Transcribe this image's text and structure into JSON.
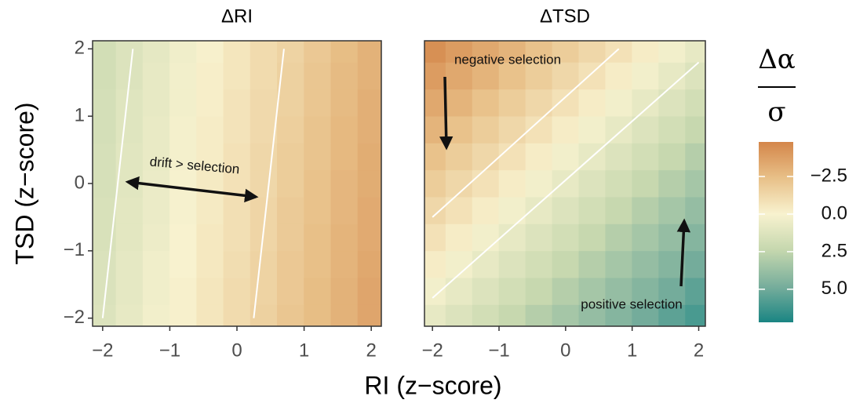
{
  "chart_data": {
    "type": "heatmap",
    "xlabel": "RI (z−score)",
    "ylabel": "TSD (z−score)",
    "colorbar": {
      "title_numerator": "Δα",
      "title_denominator": "σ",
      "clim": [
        -4.8,
        7.2
      ],
      "colors": [
        "#d4864a",
        "#e8c088",
        "#f8f2cf",
        "#c5d7ae",
        "#78ae9c",
        "#1a8583"
      ],
      "ticks": [
        {
          "value": -2.5,
          "label": "−2.5"
        },
        {
          "value": 0,
          "label": "0.0"
        },
        2.5,
        {
          "value": 5,
          "label": "5.0"
        }
      ]
    },
    "panels": [
      {
        "title": "ΔRI",
        "annotations": [
          "drift > selection"
        ],
        "xlim": [
          -2.15,
          2.15
        ],
        "ylim": [
          -2.12,
          2.12
        ],
        "xticks": [
          {
            "value": -2,
            "label": "−2"
          },
          {
            "value": -1,
            "label": "−1"
          },
          0,
          1,
          2
        ],
        "yticks": [
          {
            "value": -2,
            "label": "−2"
          },
          {
            "value": -1,
            "label": "−1"
          },
          0,
          1,
          2
        ],
        "x": [
          -2,
          -1.6,
          -1.2,
          -0.8,
          -0.4,
          0,
          0.4,
          0.8,
          1.2,
          1.6,
          2
        ],
        "y": [
          -2,
          -1.6,
          -1.2,
          -0.8,
          -0.4,
          0,
          0.4,
          0.8,
          1.2,
          1.6,
          2
        ],
        "values": [
          [
            1.3,
            0.8,
            0.3,
            -0.1,
            -0.6,
            -1.1,
            -1.6,
            -2.1,
            -2.5,
            -3.0,
            -3.5
          ],
          [
            1.4,
            0.9,
            0.4,
            -0.1,
            -0.6,
            -1.1,
            -1.5,
            -2.0,
            -2.5,
            -3.0,
            -3.5
          ],
          [
            1.4,
            0.9,
            0.4,
            0.0,
            -0.5,
            -1.0,
            -1.5,
            -2.0,
            -2.4,
            -2.9,
            -3.4
          ],
          [
            1.5,
            1.0,
            0.5,
            0.0,
            -0.5,
            -0.9,
            -1.4,
            -1.9,
            -2.4,
            -2.9,
            -3.3
          ],
          [
            1.5,
            1.0,
            0.6,
            0.1,
            -0.4,
            -0.9,
            -1.4,
            -1.9,
            -2.3,
            -2.8,
            -3.3
          ],
          [
            1.6,
            1.1,
            0.6,
            0.1,
            -0.4,
            -0.8,
            -1.3,
            -1.8,
            -2.3,
            -2.8,
            -3.2
          ],
          [
            1.6,
            1.1,
            0.7,
            0.2,
            -0.3,
            -0.8,
            -1.3,
            -1.8,
            -2.2,
            -2.7,
            -3.2
          ],
          [
            1.7,
            1.2,
            0.7,
            0.2,
            -0.3,
            -0.7,
            -1.2,
            -1.7,
            -2.2,
            -2.7,
            -3.1
          ],
          [
            1.7,
            1.2,
            0.8,
            0.3,
            -0.2,
            -0.7,
            -1.2,
            -1.6,
            -2.1,
            -2.6,
            -3.1
          ],
          [
            1.8,
            1.3,
            0.8,
            0.3,
            -0.2,
            -0.6,
            -1.1,
            -1.6,
            -2.1,
            -2.6,
            -3.0
          ],
          [
            1.8,
            1.3,
            0.9,
            0.4,
            -0.1,
            -0.6,
            -1.1,
            -1.5,
            -2.0,
            -2.5,
            -3.0
          ]
        ],
        "contours": [
          {
            "x": [
              -2,
              -1.55
            ],
            "y": [
              -2,
              2
            ]
          },
          {
            "x": [
              0.25,
              0.7
            ],
            "y": [
              -2,
              2
            ]
          }
        ]
      },
      {
        "title": "ΔTSD",
        "annotations": [
          "negative selection",
          "positive selection"
        ],
        "xlim": [
          -2.12,
          2.1
        ],
        "ylim": [
          -2.12,
          2.12
        ],
        "xticks": [
          {
            "value": -2,
            "label": "−2"
          },
          {
            "value": -1,
            "label": "−1"
          },
          0,
          1,
          2
        ],
        "x": [
          -2,
          -1.6,
          -1.2,
          -0.8,
          -0.4,
          0,
          0.4,
          0.8,
          1.2,
          1.6,
          2
        ],
        "y": [
          -2,
          -1.6,
          -1.2,
          -0.8,
          -0.4,
          0,
          0.4,
          0.8,
          1.2,
          1.6,
          2
        ],
        "values": [
          [
            0.8,
            1.3,
            1.8,
            2.3,
            2.9,
            3.4,
            3.9,
            4.4,
            4.9,
            5.5,
            6.0
          ],
          [
            0.3,
            0.8,
            1.3,
            1.8,
            2.3,
            2.9,
            3.4,
            3.9,
            4.4,
            4.9,
            5.5
          ],
          [
            -0.3,
            0.3,
            0.8,
            1.3,
            1.8,
            2.3,
            2.9,
            3.4,
            3.9,
            4.4,
            4.9
          ],
          [
            -0.8,
            -0.3,
            0.3,
            0.8,
            1.3,
            1.8,
            2.3,
            2.9,
            3.4,
            3.9,
            4.4
          ],
          [
            -1.3,
            -0.8,
            -0.3,
            0.3,
            0.8,
            1.3,
            1.8,
            2.3,
            2.9,
            3.4,
            3.9
          ],
          [
            -1.8,
            -1.3,
            -0.8,
            -0.3,
            0.3,
            0.8,
            1.3,
            1.8,
            2.3,
            2.9,
            3.4
          ],
          [
            -2.3,
            -1.8,
            -1.3,
            -0.8,
            -0.3,
            0.3,
            0.8,
            1.3,
            1.8,
            2.3,
            2.9
          ],
          [
            -2.9,
            -2.3,
            -1.8,
            -1.3,
            -0.8,
            -0.3,
            0.3,
            0.8,
            1.3,
            1.8,
            2.3
          ],
          [
            -3.4,
            -2.9,
            -2.3,
            -1.8,
            -1.3,
            -0.8,
            -0.3,
            0.3,
            0.8,
            1.3,
            1.8
          ],
          [
            -3.9,
            -3.4,
            -2.9,
            -2.3,
            -1.8,
            -1.3,
            -0.8,
            -0.3,
            0.3,
            0.8,
            1.3
          ],
          [
            -4.4,
            -3.9,
            -3.4,
            -2.9,
            -2.3,
            -1.8,
            -1.3,
            -0.8,
            -0.3,
            0.3,
            0.8
          ]
        ],
        "contours": [
          {
            "x": [
              -2,
              0.8
            ],
            "y": [
              -0.5,
              2
            ]
          },
          {
            "x": [
              -2,
              2
            ],
            "y": [
              -1.7,
              1.8
            ]
          }
        ]
      }
    ]
  }
}
